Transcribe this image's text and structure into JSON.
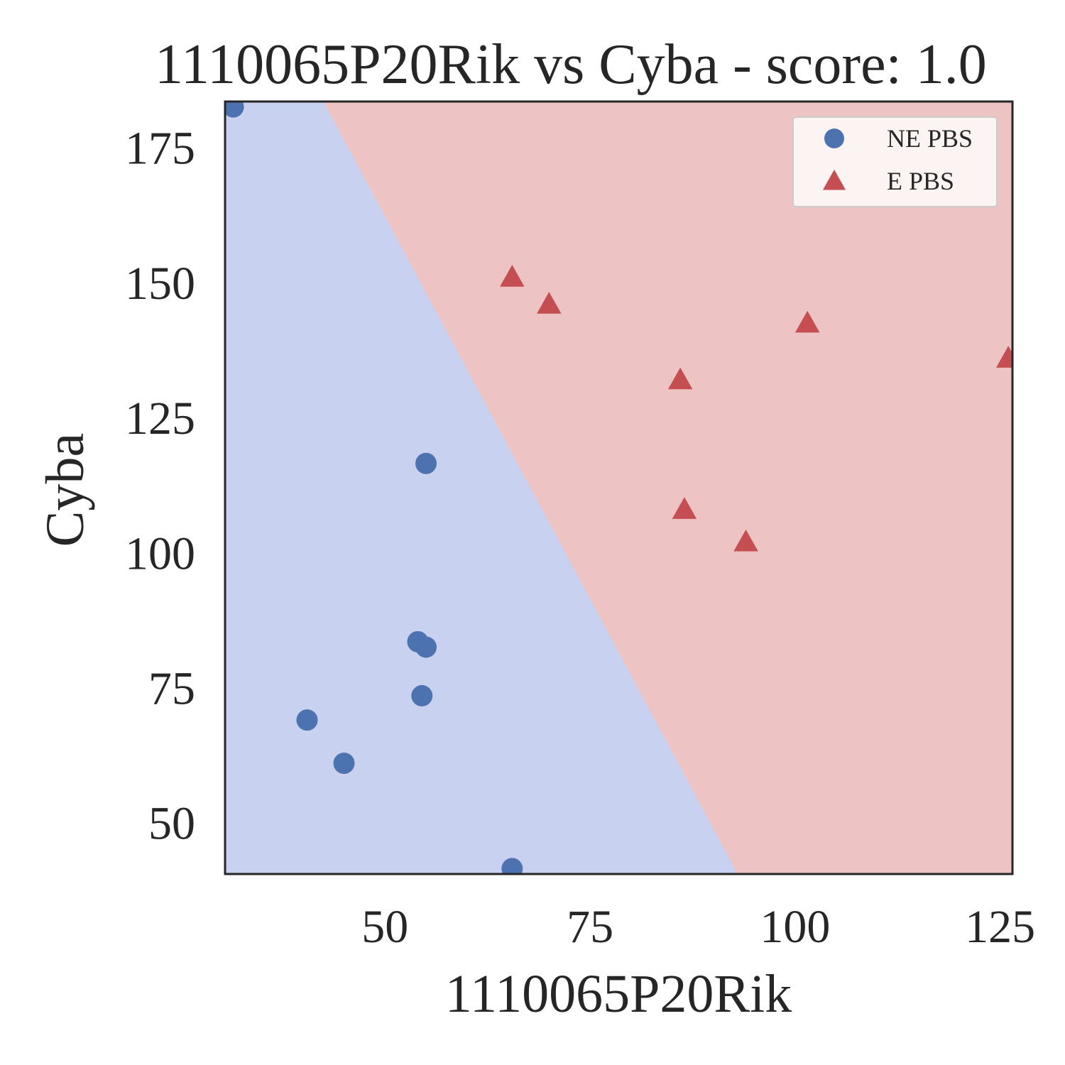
{
  "chart_data": {
    "type": "scatter",
    "title": "1110065P20Rik vs Cyba - score: 1.0",
    "xlabel": "1110065P20Rik",
    "ylabel": "Cyba",
    "xlim": [
      30.5,
      126.5
    ],
    "ylim": [
      40.5,
      183.5
    ],
    "xticks": [
      50,
      75,
      100,
      125
    ],
    "yticks": [
      50,
      75,
      100,
      125,
      150,
      175
    ],
    "grid": false,
    "legend_position": "top-right",
    "decision_boundary": [
      [
        42.5,
        183.5
      ],
      [
        93,
        40.5
      ]
    ],
    "regions": [
      {
        "class": "NE PBS",
        "color": "#c9d1f1"
      },
      {
        "class": "E PBS",
        "color": "#edc3c3"
      }
    ],
    "series": [
      {
        "name": "NE PBS",
        "marker": "circle",
        "color": "#4c72b0",
        "points": [
          [
            31.5,
            182.5
          ],
          [
            55,
            116.5
          ],
          [
            54,
            83.5
          ],
          [
            55,
            82.5
          ],
          [
            54.5,
            73.5
          ],
          [
            40.5,
            69
          ],
          [
            45,
            61
          ],
          [
            65.5,
            41.5
          ]
        ]
      },
      {
        "name": "E PBS",
        "marker": "triangle",
        "color": "#c44e52",
        "points": [
          [
            65.5,
            151
          ],
          [
            70,
            146
          ],
          [
            86,
            132
          ],
          [
            86.5,
            108
          ],
          [
            94,
            102
          ],
          [
            101.5,
            142.5
          ],
          [
            126,
            136
          ]
        ]
      }
    ]
  }
}
